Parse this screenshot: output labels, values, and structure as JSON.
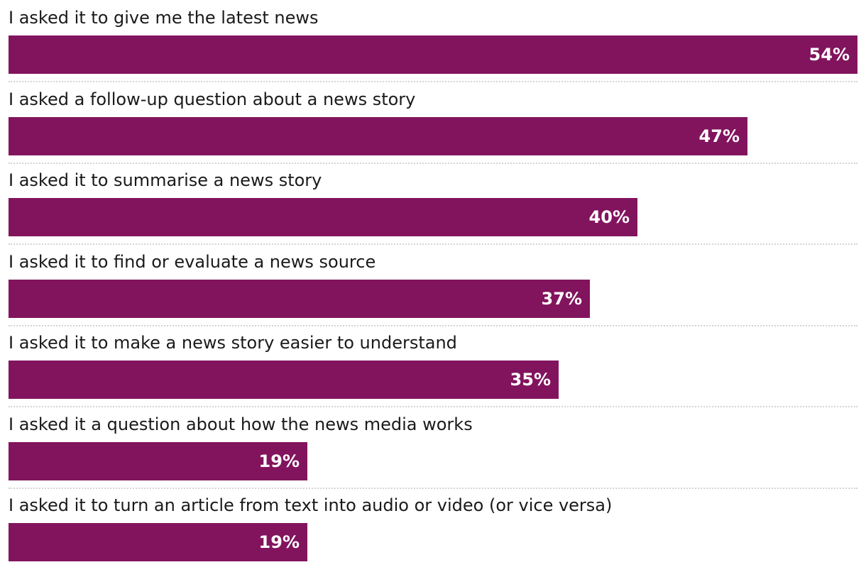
{
  "chart_data": {
    "type": "bar",
    "orientation": "horizontal",
    "value_suffix": "%",
    "bar_color": "#82145e",
    "xlim": [
      0,
      54
    ],
    "categories": [
      "I asked it to give me the latest news",
      "I asked a follow-up question about a news story",
      "I asked it to summarise a news story",
      "I asked it to find or evaluate a news source",
      "I asked it to make a news story easier to understand",
      "I asked it a question about how the news media works",
      "I asked it to turn an article from text into audio or video (or vice versa)"
    ],
    "values": [
      54,
      47,
      40,
      37,
      35,
      19,
      19
    ],
    "value_labels": [
      "54%",
      "47%",
      "40%",
      "37%",
      "35%",
      "19%",
      "19%"
    ]
  }
}
